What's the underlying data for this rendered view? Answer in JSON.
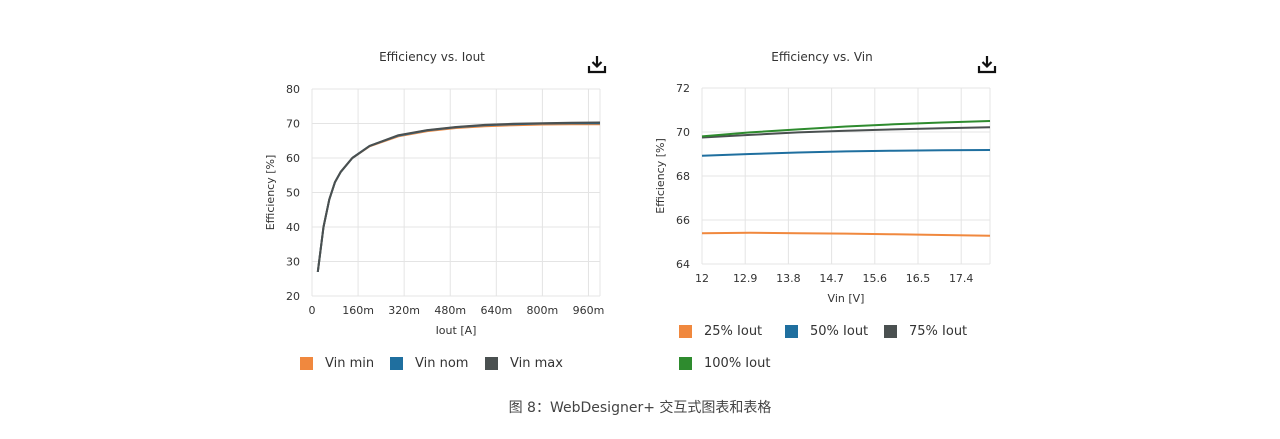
{
  "caption": "图 8：WebDesigner+ 交互式图表和表格",
  "chart_data": [
    {
      "type": "line",
      "title": "Efficiency vs. Iout",
      "xlabel": "Iout [A]",
      "ylabel": "Efficiency [%]",
      "xlim": [
        0,
        1.0
      ],
      "ylim": [
        20,
        80
      ],
      "grid": true,
      "legend_position": "bottom",
      "xticks": [
        0,
        0.16,
        0.32,
        0.48,
        0.64,
        0.8,
        0.96
      ],
      "xtick_labels": [
        "0",
        "160m",
        "320m",
        "480m",
        "640m",
        "800m",
        "960m"
      ],
      "yticks": [
        20,
        30,
        40,
        50,
        60,
        70,
        80
      ],
      "ytick_labels": [
        "20",
        "30",
        "40",
        "50",
        "60",
        "70",
        "80"
      ],
      "x": [
        0.02,
        0.04,
        0.06,
        0.08,
        0.1,
        0.14,
        0.2,
        0.3,
        0.4,
        0.5,
        0.6,
        0.7,
        0.8,
        0.9,
        1.0
      ],
      "series": [
        {
          "name": "Vin min",
          "color": "#f0883e",
          "values": [
            27,
            40,
            48,
            53,
            56,
            60,
            63.4,
            66.3,
            67.8,
            68.7,
            69.2,
            69.5,
            69.7,
            69.8,
            69.8
          ]
        },
        {
          "name": "Vin nom",
          "color": "#1f6f9f",
          "values": [
            27,
            40,
            48,
            53,
            56,
            60,
            63.5,
            66.5,
            68.0,
            68.9,
            69.5,
            69.8,
            70.0,
            70.1,
            70.1
          ]
        },
        {
          "name": "Vin max",
          "color": "#4a5050",
          "values": [
            27,
            40,
            48,
            53,
            56,
            60,
            63.5,
            66.6,
            68.1,
            69.0,
            69.6,
            69.9,
            70.1,
            70.2,
            70.3
          ]
        }
      ]
    },
    {
      "type": "line",
      "title": "Efficiency vs. Vin",
      "xlabel": "Vin [V]",
      "ylabel": "Efficiency [%]",
      "xlim": [
        12,
        18
      ],
      "ylim": [
        64,
        72
      ],
      "grid": true,
      "legend_position": "bottom",
      "xticks": [
        12,
        12.9,
        13.8,
        14.7,
        15.6,
        16.5,
        17.4
      ],
      "xtick_labels": [
        "12",
        "12.9",
        "13.8",
        "14.7",
        "15.6",
        "16.5",
        "17.4"
      ],
      "yticks": [
        64,
        66,
        68,
        70,
        72
      ],
      "ytick_labels": [
        "64",
        "66",
        "68",
        "70",
        "72"
      ],
      "x": [
        12,
        13,
        14,
        15,
        16,
        17,
        18
      ],
      "series": [
        {
          "name": "25% Iout",
          "color": "#f0883e",
          "values": [
            65.4,
            65.42,
            65.4,
            65.38,
            65.35,
            65.32,
            65.28
          ]
        },
        {
          "name": "50% Iout",
          "color": "#1f6f9f",
          "values": [
            68.92,
            69.0,
            69.07,
            69.12,
            69.15,
            69.17,
            69.18
          ]
        },
        {
          "name": "75% Iout",
          "color": "#4a5050",
          "values": [
            69.75,
            69.87,
            69.98,
            70.06,
            70.12,
            70.17,
            70.22
          ]
        },
        {
          "name": "100% Iout",
          "color": "#2e8b2e",
          "values": [
            69.8,
            69.98,
            70.12,
            70.25,
            70.35,
            70.43,
            70.5
          ]
        }
      ]
    }
  ]
}
